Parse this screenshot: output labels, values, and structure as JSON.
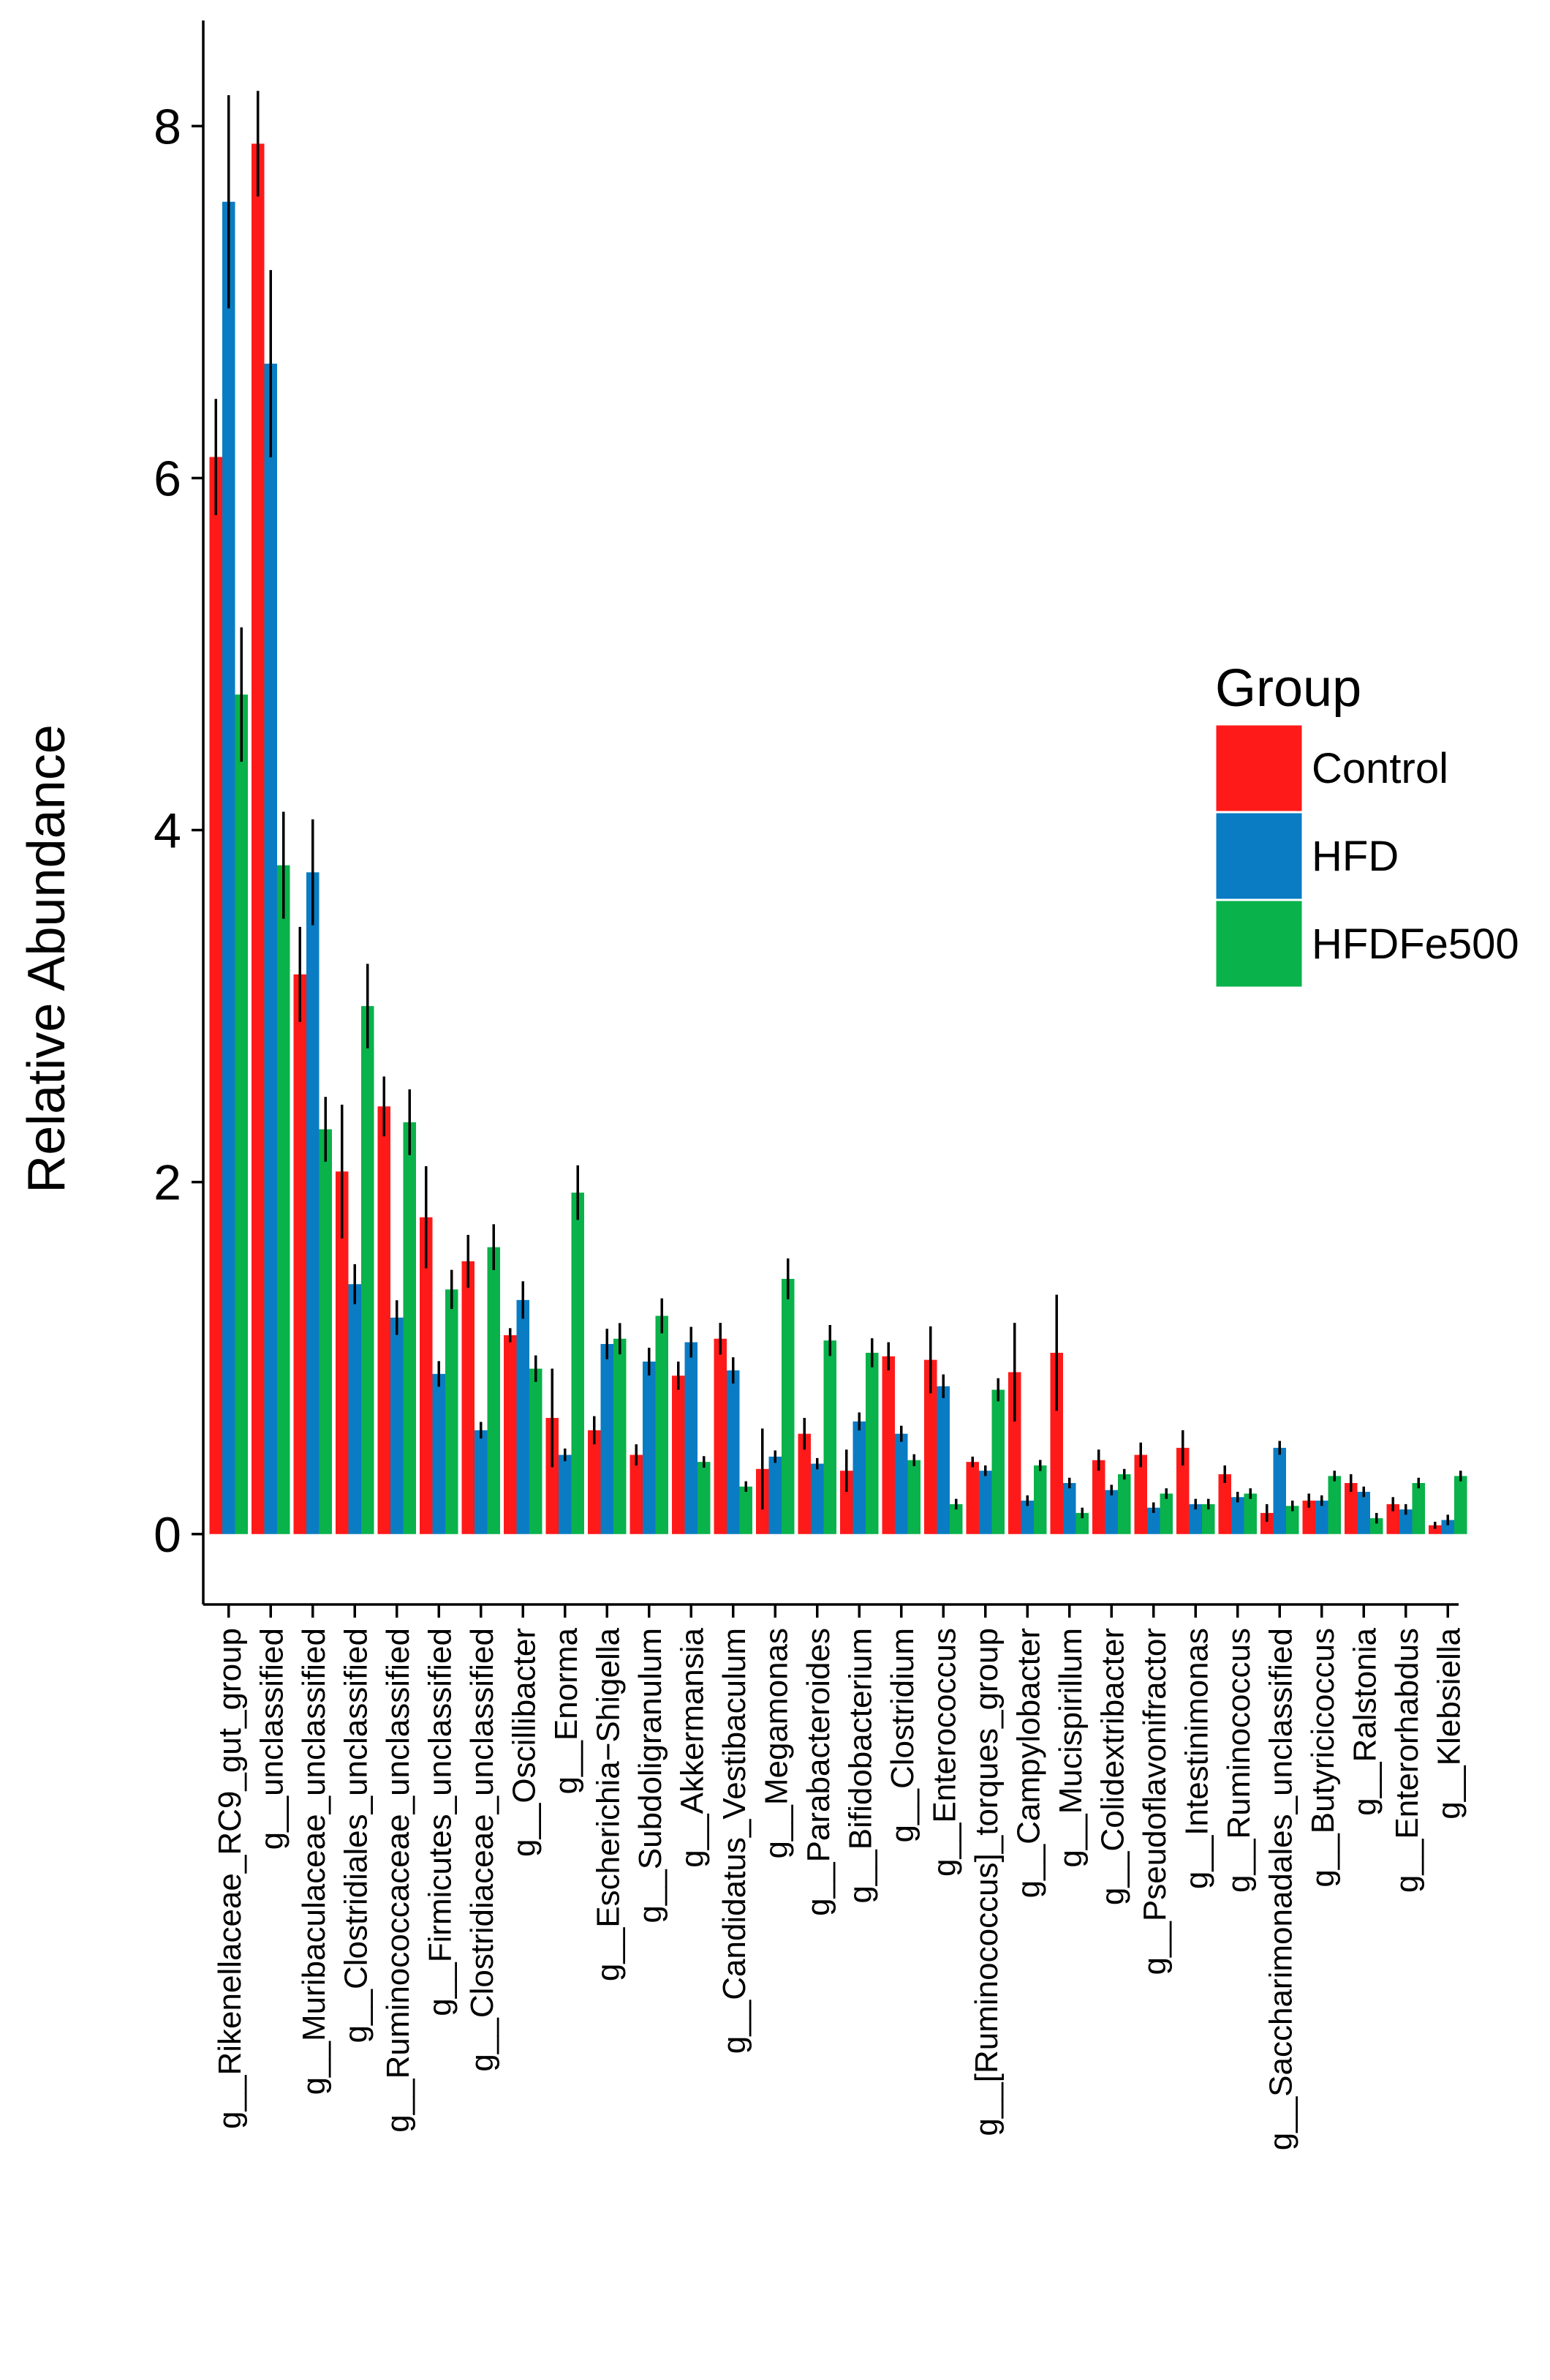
{
  "chart_data": {
    "type": "bar",
    "title": "",
    "xlabel": "",
    "ylabel": "Relative Abundance",
    "ylim": [
      -0.4,
      8.6
    ],
    "yticks": [
      0,
      2,
      4,
      6,
      8
    ],
    "grid": false,
    "legend": {
      "title": "Group",
      "position": "right"
    },
    "categories": [
      "g__Rikenellaceae_RC9_gut_group",
      "g__unclassified",
      "g__Muribaculaceae_unclassified",
      "g__Clostridiales_unclassified",
      "g__Ruminococcaceae_unclassified",
      "g__Firmicutes_unclassified",
      "g__Clostridiaceae_unclassified",
      "g__Oscillibacter",
      "g__Enorma",
      "g__Escherichia−Shigella",
      "g__Subdoligranulum",
      "g__Akkermansia",
      "g__Candidatus_Vestibaculum",
      "g__Megamonas",
      "g__Parabacteroides",
      "g__Bifidobacterium",
      "g__Clostridium",
      "g__Enterococcus",
      "g__[Ruminococcus]_torques_group",
      "g__Campylobacter",
      "g__Mucispirillum",
      "g__Colidextribacter",
      "g__Pseudoflavonifractor",
      "g__Intestinimonas",
      "g__Ruminococcus",
      "g__Saccharimonadales_unclassified",
      "g__Butyricicoccus",
      "g__Ralstonia",
      "g__Enterorhabdus",
      "g__Klebsiella"
    ],
    "series": [
      {
        "name": "Control",
        "color": "#ff1a1a",
        "values": [
          6.12,
          7.9,
          3.18,
          2.06,
          2.43,
          1.8,
          1.55,
          1.13,
          0.66,
          0.59,
          0.45,
          0.9,
          1.11,
          0.37,
          0.57,
          0.36,
          1.01,
          0.99,
          0.41,
          0.92,
          1.03,
          0.42,
          0.45,
          0.49,
          0.34,
          0.12,
          0.19,
          0.29,
          0.17,
          0.05
        ],
        "errors": [
          0.33,
          0.3,
          0.27,
          0.38,
          0.17,
          0.29,
          0.15,
          0.04,
          0.28,
          0.08,
          0.06,
          0.08,
          0.09,
          0.23,
          0.09,
          0.12,
          0.08,
          0.19,
          0.03,
          0.28,
          0.33,
          0.06,
          0.07,
          0.1,
          0.05,
          0.05,
          0.04,
          0.05,
          0.04,
          0.02
        ]
      },
      {
        "name": "HFD",
        "color": "#0a7cc4",
        "values": [
          7.57,
          6.65,
          3.76,
          1.42,
          1.23,
          0.91,
          0.59,
          1.33,
          0.45,
          1.08,
          0.98,
          1.09,
          0.93,
          0.44,
          0.4,
          0.64,
          0.57,
          0.84,
          0.36,
          0.19,
          0.29,
          0.25,
          0.15,
          0.17,
          0.21,
          0.49,
          0.19,
          0.24,
          0.14,
          0.08
        ]
      },
      {
        "name": "HFDFe500",
        "color": "#09b24a",
        "values": [
          4.77,
          3.8,
          2.3,
          3.0,
          2.34,
          1.39,
          1.63,
          0.94,
          1.94,
          1.11,
          1.24,
          0.41,
          0.27,
          1.45,
          1.1,
          1.03,
          0.42,
          0.17,
          0.82,
          0.39,
          0.12,
          0.34,
          0.23,
          0.17,
          0.23,
          0.16,
          0.33,
          0.09,
          0.29,
          0.33
        ]
      }
    ]
  }
}
